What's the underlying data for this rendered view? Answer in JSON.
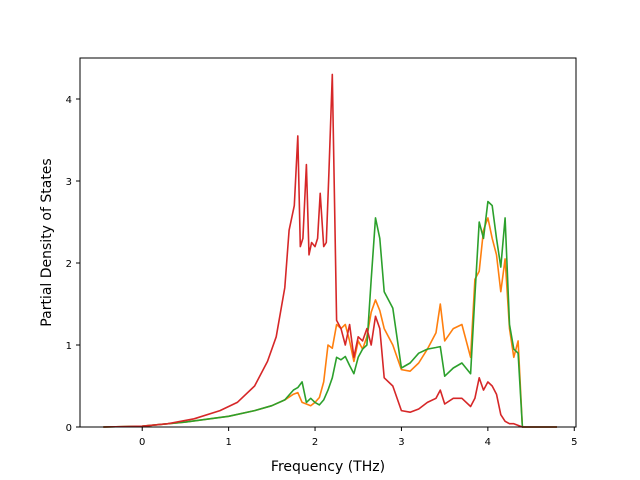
{
  "chart_data": {
    "type": "line",
    "title": "",
    "xlabel": "Frequency (THz)",
    "ylabel": "Partial Density of States",
    "xlim": [
      -0.72,
      5.02
    ],
    "ylim": [
      0,
      4.5
    ],
    "xticks": [
      0,
      1,
      2,
      3,
      4,
      5
    ],
    "yticks": [
      0,
      1,
      2,
      3,
      4
    ],
    "grid": false,
    "legend": "none",
    "series": [
      {
        "color": "#ff7f0e",
        "x": [
          -0.45,
          0.0,
          0.5,
          1.0,
          1.3,
          1.5,
          1.65,
          1.75,
          1.8,
          1.85,
          1.9,
          1.95,
          2.0,
          2.05,
          2.1,
          2.15,
          2.2,
          2.25,
          2.3,
          2.35,
          2.4,
          2.45,
          2.5,
          2.55,
          2.6,
          2.65,
          2.7,
          2.75,
          2.8,
          2.9,
          3.0,
          3.1,
          3.2,
          3.3,
          3.4,
          3.45,
          3.5,
          3.6,
          3.7,
          3.8,
          3.85,
          3.9,
          3.95,
          4.0,
          4.05,
          4.1,
          4.15,
          4.2,
          4.25,
          4.3,
          4.35,
          4.4,
          4.8
        ],
        "y": [
          0.0,
          0.01,
          0.06,
          0.13,
          0.2,
          0.26,
          0.33,
          0.4,
          0.42,
          0.3,
          0.28,
          0.26,
          0.3,
          0.36,
          0.55,
          1.0,
          0.96,
          1.25,
          1.2,
          1.25,
          1.05,
          0.8,
          1.05,
          0.95,
          1.1,
          1.4,
          1.55,
          1.42,
          1.2,
          1.0,
          0.7,
          0.68,
          0.78,
          0.95,
          1.15,
          1.5,
          1.05,
          1.2,
          1.25,
          0.85,
          1.8,
          1.9,
          2.4,
          2.55,
          2.3,
          2.1,
          1.65,
          2.05,
          1.2,
          0.85,
          1.05,
          0.0,
          0.0
        ]
      },
      {
        "color": "#2ca02c",
        "x": [
          -0.45,
          0.0,
          0.5,
          1.0,
          1.3,
          1.5,
          1.65,
          1.75,
          1.8,
          1.85,
          1.9,
          1.95,
          2.0,
          2.05,
          2.1,
          2.15,
          2.2,
          2.25,
          2.3,
          2.35,
          2.4,
          2.45,
          2.5,
          2.55,
          2.6,
          2.65,
          2.7,
          2.75,
          2.8,
          2.9,
          3.0,
          3.1,
          3.2,
          3.3,
          3.4,
          3.45,
          3.5,
          3.6,
          3.7,
          3.8,
          3.85,
          3.9,
          3.95,
          4.0,
          4.05,
          4.1,
          4.15,
          4.2,
          4.25,
          4.3,
          4.35,
          4.4,
          4.8
        ],
        "y": [
          0.0,
          0.01,
          0.06,
          0.13,
          0.2,
          0.26,
          0.33,
          0.45,
          0.48,
          0.55,
          0.3,
          0.35,
          0.3,
          0.27,
          0.33,
          0.45,
          0.6,
          0.85,
          0.82,
          0.86,
          0.75,
          0.65,
          0.85,
          0.95,
          1.0,
          1.8,
          2.55,
          2.3,
          1.65,
          1.45,
          0.72,
          0.78,
          0.9,
          0.95,
          0.97,
          0.98,
          0.62,
          0.72,
          0.78,
          0.65,
          1.6,
          2.5,
          2.3,
          2.75,
          2.7,
          2.3,
          1.95,
          2.55,
          1.25,
          0.95,
          0.9,
          0.0,
          0.0
        ]
      },
      {
        "color": "#d62728",
        "x": [
          -0.45,
          0.0,
          0.3,
          0.6,
          0.9,
          1.1,
          1.3,
          1.45,
          1.55,
          1.65,
          1.7,
          1.73,
          1.76,
          1.8,
          1.83,
          1.86,
          1.9,
          1.93,
          1.96,
          2.0,
          2.03,
          2.06,
          2.1,
          2.13,
          2.16,
          2.2,
          2.25,
          2.3,
          2.35,
          2.4,
          2.45,
          2.5,
          2.55,
          2.6,
          2.65,
          2.7,
          2.75,
          2.8,
          2.9,
          3.0,
          3.1,
          3.2,
          3.3,
          3.4,
          3.45,
          3.5,
          3.6,
          3.7,
          3.8,
          3.85,
          3.9,
          3.95,
          4.0,
          4.05,
          4.1,
          4.15,
          4.2,
          4.25,
          4.3,
          4.35,
          4.4,
          4.8
        ],
        "y": [
          0.0,
          0.01,
          0.04,
          0.1,
          0.2,
          0.3,
          0.5,
          0.8,
          1.1,
          1.7,
          2.4,
          2.55,
          2.7,
          3.55,
          2.2,
          2.3,
          3.2,
          2.1,
          2.25,
          2.2,
          2.3,
          2.85,
          2.2,
          2.25,
          3.1,
          4.3,
          1.3,
          1.2,
          1.0,
          1.25,
          0.85,
          1.1,
          1.05,
          1.2,
          1.0,
          1.35,
          1.2,
          0.6,
          0.5,
          0.2,
          0.18,
          0.22,
          0.3,
          0.35,
          0.45,
          0.28,
          0.35,
          0.35,
          0.25,
          0.35,
          0.6,
          0.45,
          0.55,
          0.5,
          0.4,
          0.15,
          0.07,
          0.04,
          0.04,
          0.02,
          0.0,
          0.0
        ]
      }
    ]
  }
}
